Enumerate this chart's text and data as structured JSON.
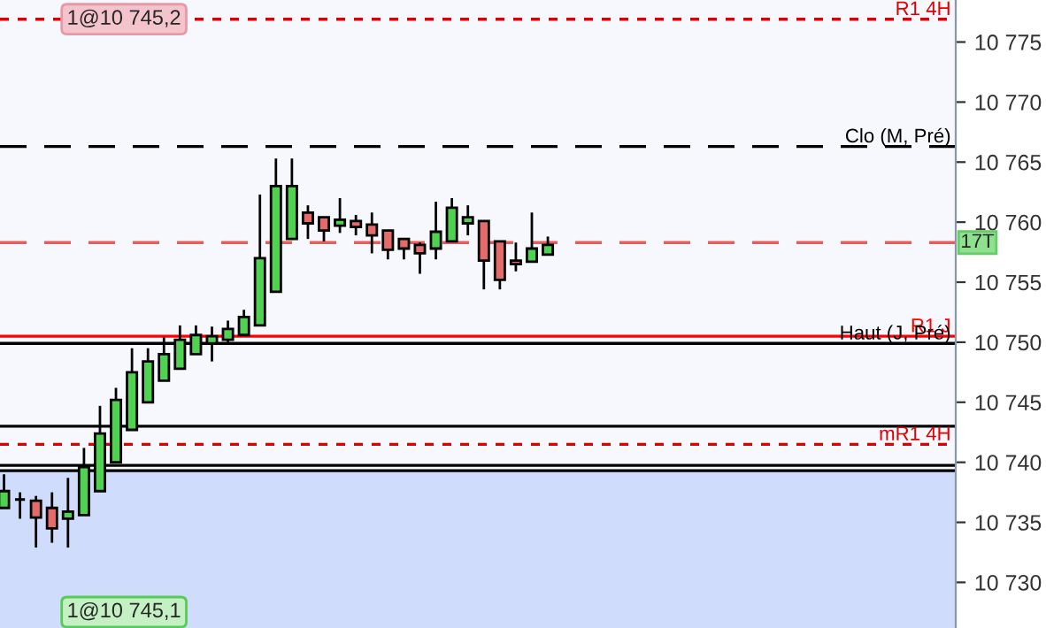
{
  "chart_data": {
    "type": "candlestick",
    "categories": [
      null,
      null,
      null,
      null,
      null,
      null,
      null,
      null,
      null,
      null,
      null,
      null,
      null,
      null,
      null,
      null,
      null,
      null,
      null,
      null,
      null,
      null,
      null,
      null,
      null,
      null,
      null,
      null,
      null,
      null,
      null,
      null,
      null,
      null,
      null,
      null,
      null,
      null,
      null,
      null,
      null,
      null,
      null,
      null,
      null,
      null,
      null,
      null,
      null,
      null,
      null,
      null,
      null,
      null,
      null,
      null,
      null,
      null,
      null,
      null
    ],
    "ohlc": [
      [
        10736.2,
        10739.0,
        10736.2,
        10737.6
      ],
      [
        10736.9,
        10737.5,
        10735.3,
        10736.9
      ],
      [
        10736.8,
        10737.2,
        10732.9,
        10735.4
      ],
      [
        10736.2,
        10737.5,
        10733.3,
        10734.5
      ],
      [
        10735.3,
        10738.7,
        10732.9,
        10735.9
      ],
      [
        10735.6,
        10741.2,
        10735.6,
        10739.6
      ],
      [
        10737.6,
        10744.7,
        10737.6,
        10742.4
      ],
      [
        10740.0,
        10746.2,
        10740.0,
        10745.2
      ],
      [
        10742.7,
        10749.5,
        10742.7,
        10747.5
      ],
      [
        10745.0,
        10749.5,
        10745.0,
        10748.4
      ],
      [
        10746.8,
        10750.4,
        10746.8,
        10749.0
      ],
      [
        10747.8,
        10751.4,
        10747.8,
        10750.2
      ],
      [
        10749.0,
        10751.4,
        10749.0,
        10750.6
      ],
      [
        10749.9,
        10751.3,
        10748.4,
        10750.5
      ],
      [
        10750.2,
        10751.8,
        10750.0,
        10751.1
      ],
      [
        10750.6,
        10752.7,
        10750.6,
        10752.1
      ],
      [
        10751.4,
        10762.3,
        10751.4,
        10757.0
      ],
      [
        10754.2,
        10765.3,
        10754.2,
        10763.0
      ],
      [
        10758.6,
        10765.3,
        10758.6,
        10763.0
      ],
      [
        10760.8,
        10761.4,
        10758.6,
        10759.9
      ],
      [
        10760.4,
        10760.4,
        10758.4,
        10759.3
      ],
      [
        10759.7,
        10762.0,
        10759.1,
        10760.2
      ],
      [
        10760.1,
        10760.6,
        10758.9,
        10759.6
      ],
      [
        10759.8,
        10760.8,
        10757.4,
        10758.9
      ],
      [
        10759.3,
        10759.3,
        10756.9,
        10757.7
      ],
      [
        10758.6,
        10758.6,
        10756.9,
        10757.8
      ],
      [
        10758.1,
        10758.3,
        10755.7,
        10757.4
      ],
      [
        10757.8,
        10761.7,
        10756.9,
        10759.2
      ],
      [
        10758.4,
        10762.0,
        10758.4,
        10761.2
      ],
      [
        10759.9,
        10761.4,
        10758.9,
        10760.4
      ],
      [
        10760.1,
        10760.1,
        10754.4,
        10756.8
      ],
      [
        10758.4,
        10758.4,
        10754.4,
        10755.2
      ],
      [
        10756.8,
        10758.3,
        10755.9,
        10756.5
      ],
      [
        10756.7,
        10760.8,
        10756.7,
        10757.8
      ],
      [
        10757.3,
        10758.8,
        10757.3,
        10758.1
      ],
      null,
      null,
      null,
      null,
      null,
      null,
      null,
      null,
      null,
      null,
      null,
      null,
      null,
      null,
      null,
      null,
      null,
      null,
      null,
      null,
      null,
      null,
      null,
      null,
      null
    ],
    "colors": [
      "#4fd24f",
      "#000000",
      "#e56a6a",
      "#e56a6a",
      "#4fd24f",
      "#4fd24f",
      "#4fd24f",
      "#4fd24f",
      "#4fd24f",
      "#4fd24f",
      "#4fd24f",
      "#4fd24f",
      "#4fd24f",
      "#4fd24f",
      "#4fd24f",
      "#4fd24f",
      "#4fd24f",
      "#4fd24f",
      "#4fd24f",
      "#e56a6a",
      "#e56a6a",
      "#4fd24f",
      "#e56a6a",
      "#e56a6a",
      "#e56a6a",
      "#e56a6a",
      "#e56a6a",
      "#4fd24f",
      "#4fd24f",
      "#4fd24f",
      "#e56a6a",
      "#e56a6a",
      "#e56a6a",
      "#4fd24f",
      "#4fd24f",
      null,
      null,
      null,
      null,
      null,
      null,
      null,
      null,
      null,
      null,
      null,
      null,
      null,
      null,
      null,
      null,
      null,
      null,
      null,
      null,
      null,
      null,
      null,
      null,
      null
    ],
    "ylim": [
      10726.2,
      10778.5
    ],
    "yticks": [
      {
        "value": 10730,
        "label": "10 730"
      },
      {
        "value": 10735,
        "label": "10 735"
      },
      {
        "value": 10740,
        "label": "10 740"
      },
      {
        "value": 10745,
        "label": "10 745"
      },
      {
        "value": 10750,
        "label": "10 750"
      },
      {
        "value": 10755,
        "label": "10 755"
      },
      {
        "value": 10760,
        "label": "10 760"
      },
      {
        "value": 10765,
        "label": "10 765"
      },
      {
        "value": 10770,
        "label": "10 770"
      },
      {
        "value": 10775,
        "label": "10 775"
      }
    ],
    "tick_labels": "y",
    "ref_lines": [
      {
        "axis": "y",
        "value": 10776.9,
        "label": "R1 4H",
        "color": "#e00000",
        "line_style": "dotted"
      },
      {
        "axis": "y",
        "value": 10766.3,
        "label": "Clo (M, Pré)",
        "color": "#000000",
        "line_style": "dashed"
      },
      {
        "axis": "y",
        "value": 10758.3,
        "label": "17T",
        "color": "#e06060",
        "line_style": "dashed"
      },
      {
        "axis": "y",
        "value": 10750.5,
        "label": "R1 J",
        "color": "#ff0000",
        "line_style": "solid"
      },
      {
        "axis": "y",
        "value": 10749.9,
        "label": "Haut (J, Pré)",
        "color": "#000000",
        "line_style": "solid"
      },
      {
        "axis": "y",
        "value": 10743.0,
        "color": "#000000",
        "line_style": "solid"
      },
      {
        "axis": "y",
        "value": 10741.5,
        "label": "mR1 4H",
        "color": "#e00000",
        "line_style": "dotted"
      },
      {
        "axis": "y",
        "value": 10739.75,
        "color": "#000000",
        "line_style": "solid"
      },
      {
        "axis": "y",
        "value": 10739.3,
        "color": "#000000",
        "line_style": "solid"
      }
    ],
    "bands": [
      {
        "axis": "y",
        "from": 10726.2,
        "to": 10739.3,
        "color": "#cfdcfc"
      }
    ],
    "annotations": [
      "1@10 745,2",
      "1@10 745,1"
    ],
    "grid": false,
    "legend": false
  }
}
